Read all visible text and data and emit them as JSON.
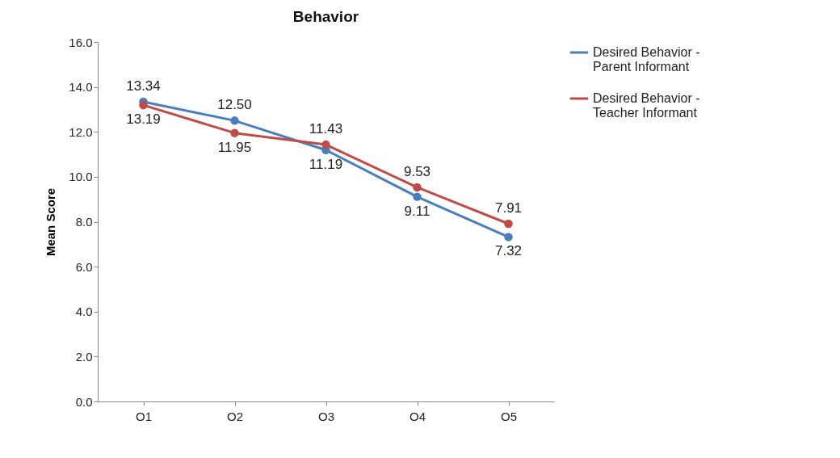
{
  "chart_data": {
    "type": "line",
    "title": "Behavior",
    "ylabel": "Mean Score",
    "categories": [
      "O1",
      "O2",
      "O3",
      "O4",
      "O5"
    ],
    "series": [
      {
        "name": "Desired Behavior - Parent  Informant",
        "color": "#4a7ebb",
        "values": [
          13.34,
          12.5,
          11.19,
          9.11,
          7.32
        ],
        "value_labels": [
          "13.34",
          "12.50",
          "11.19",
          "9.11",
          "7.32"
        ]
      },
      {
        "name": "Desired Behavior - Teacher  Informant",
        "color": "#be4b48",
        "values": [
          13.19,
          11.95,
          11.43,
          9.53,
          7.91
        ],
        "value_labels": [
          "13.19",
          "11.95",
          "11.43",
          "9.53",
          "7.91"
        ]
      }
    ],
    "ylim": [
      0,
      16
    ],
    "yticks": [
      {
        "value": 0,
        "label": "0.0"
      },
      {
        "value": 2,
        "label": "2.0"
      },
      {
        "value": 4,
        "label": "4.0"
      },
      {
        "value": 6,
        "label": "6.0"
      },
      {
        "value": 8,
        "label": "8.0"
      },
      {
        "value": 10,
        "label": "10.0"
      },
      {
        "value": 12,
        "label": "12.0"
      },
      {
        "value": 14,
        "label": "14.0"
      },
      {
        "value": 16,
        "label": "16.0"
      }
    ],
    "grid": false,
    "legend": "right",
    "marker": "circle",
    "line_style": "solid"
  }
}
